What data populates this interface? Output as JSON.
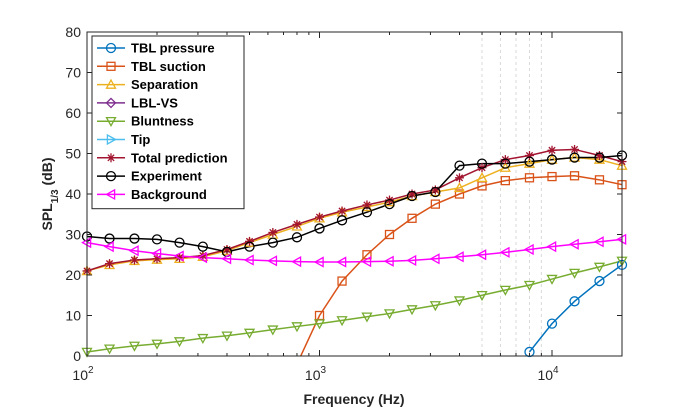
{
  "chart_data": {
    "type": "line",
    "title": "",
    "xlabel": "Frequency (Hz)",
    "ylabel_main": "SPL",
    "ylabel_sub": "1/3",
    "ylabel_unit": " (dB)",
    "xscale": "log",
    "xlim": [
      100,
      20000
    ],
    "ylim": [
      0,
      80
    ],
    "grid": "vertical minor dashed lines on right half",
    "legend_position": "top-left",
    "xticks": [
      {
        "value": 100,
        "base": "10",
        "exp": "2"
      },
      {
        "value": 1000,
        "base": "10",
        "exp": "3"
      },
      {
        "value": 10000,
        "base": "10",
        "exp": "4"
      }
    ],
    "yticks": [
      "0",
      "10",
      "20",
      "30",
      "40",
      "50",
      "60",
      "70",
      "80"
    ],
    "series": [
      {
        "name": "TBL pressure",
        "color": "#0072BD",
        "marker": "circle",
        "x": [
          8000,
          10000,
          12500,
          16000,
          20000
        ],
        "y": [
          1,
          8,
          13.5,
          18.5,
          22.5
        ]
      },
      {
        "name": "TBL suction",
        "color": "#D95319",
        "marker": "square",
        "x": [
          800,
          1000,
          1250,
          1600,
          2000,
          2500,
          3150,
          4000,
          5000,
          6300,
          8000,
          10000,
          12500,
          16000,
          20000
        ],
        "y": [
          -2,
          10,
          18.5,
          25,
          30,
          34,
          37.5,
          40,
          42,
          43.3,
          44,
          44.3,
          44.5,
          43.5,
          42.3
        ]
      },
      {
        "name": "Separation",
        "color": "#EDB120",
        "marker": "triangle-up",
        "x": [
          100,
          125,
          160,
          200,
          250,
          315,
          400,
          500,
          630,
          800,
          1000,
          1250,
          1600,
          2000,
          2500,
          3150,
          4000,
          5000,
          6300,
          8000,
          10000,
          12500,
          16000,
          20000
        ],
        "y": [
          21,
          22.5,
          23.5,
          23.8,
          24,
          24.5,
          26,
          28,
          30,
          32,
          34,
          35.5,
          36.8,
          38,
          39.5,
          40.5,
          41.5,
          44,
          46.5,
          47.5,
          48.5,
          49,
          48.5,
          47
        ]
      },
      {
        "name": "LBL-VS",
        "color": "#7E2F8E",
        "marker": "diamond",
        "x": [],
        "y": []
      },
      {
        "name": "Bluntness",
        "color": "#77AC30",
        "marker": "triangle-down",
        "x": [
          100,
          125,
          160,
          200,
          250,
          315,
          400,
          500,
          630,
          800,
          1000,
          1250,
          1600,
          2000,
          2500,
          3150,
          4000,
          5000,
          6300,
          8000,
          10000,
          12500,
          16000,
          20000
        ],
        "y": [
          1,
          1.8,
          2.5,
          3,
          3.6,
          4.4,
          5,
          5.7,
          6.5,
          7.3,
          8,
          8.8,
          9.7,
          10.5,
          11.5,
          12.5,
          13.7,
          15,
          16.3,
          17.5,
          19,
          20.5,
          22,
          23.5
        ]
      },
      {
        "name": "Tip",
        "color": "#4DBEEE",
        "marker": "triangle-right",
        "x": [],
        "y": []
      },
      {
        "name": "Total prediction",
        "color": "#A2142F",
        "marker": "star",
        "x": [
          100,
          125,
          160,
          200,
          250,
          315,
          400,
          500,
          630,
          800,
          1000,
          1250,
          1600,
          2000,
          2500,
          3150,
          4000,
          5000,
          6300,
          8000,
          10000,
          12500,
          16000,
          20000
        ],
        "y": [
          21,
          22.8,
          23.7,
          24,
          24.3,
          24.8,
          26.3,
          28.3,
          30.5,
          32.5,
          34.3,
          35.8,
          37.3,
          38.5,
          40,
          41,
          44,
          46.5,
          48.5,
          49.5,
          50.8,
          51,
          49.5,
          48
        ]
      },
      {
        "name": "Experiment",
        "color": "#000000",
        "marker": "circle",
        "x": [
          100,
          125,
          160,
          200,
          250,
          315,
          400,
          500,
          630,
          800,
          1000,
          1250,
          1600,
          2000,
          2500,
          3150,
          4000,
          5000,
          6300,
          8000,
          10000,
          12500,
          16000,
          20000
        ],
        "y": [
          29.5,
          29,
          29,
          28.8,
          28,
          27,
          25.7,
          27,
          28,
          29.3,
          31.5,
          33.5,
          35.5,
          37.5,
          39.5,
          40.5,
          47,
          47.5,
          47.5,
          48,
          48.5,
          49,
          49,
          49.5
        ]
      },
      {
        "name": "Background",
        "color": "#FF00FF",
        "marker": "triangle-left",
        "x": [
          100,
          125,
          160,
          200,
          250,
          315,
          400,
          500,
          630,
          800,
          1000,
          1250,
          1600,
          2000,
          2500,
          3150,
          4000,
          5000,
          6300,
          8000,
          10000,
          12500,
          16000,
          20000
        ],
        "y": [
          28,
          27,
          26,
          25.3,
          24.7,
          24.3,
          24,
          23.7,
          23.5,
          23.3,
          23.2,
          23.2,
          23.3,
          23.4,
          23.6,
          24,
          24.5,
          25,
          25.6,
          26.3,
          27,
          27.6,
          28.2,
          28.8
        ]
      }
    ]
  }
}
